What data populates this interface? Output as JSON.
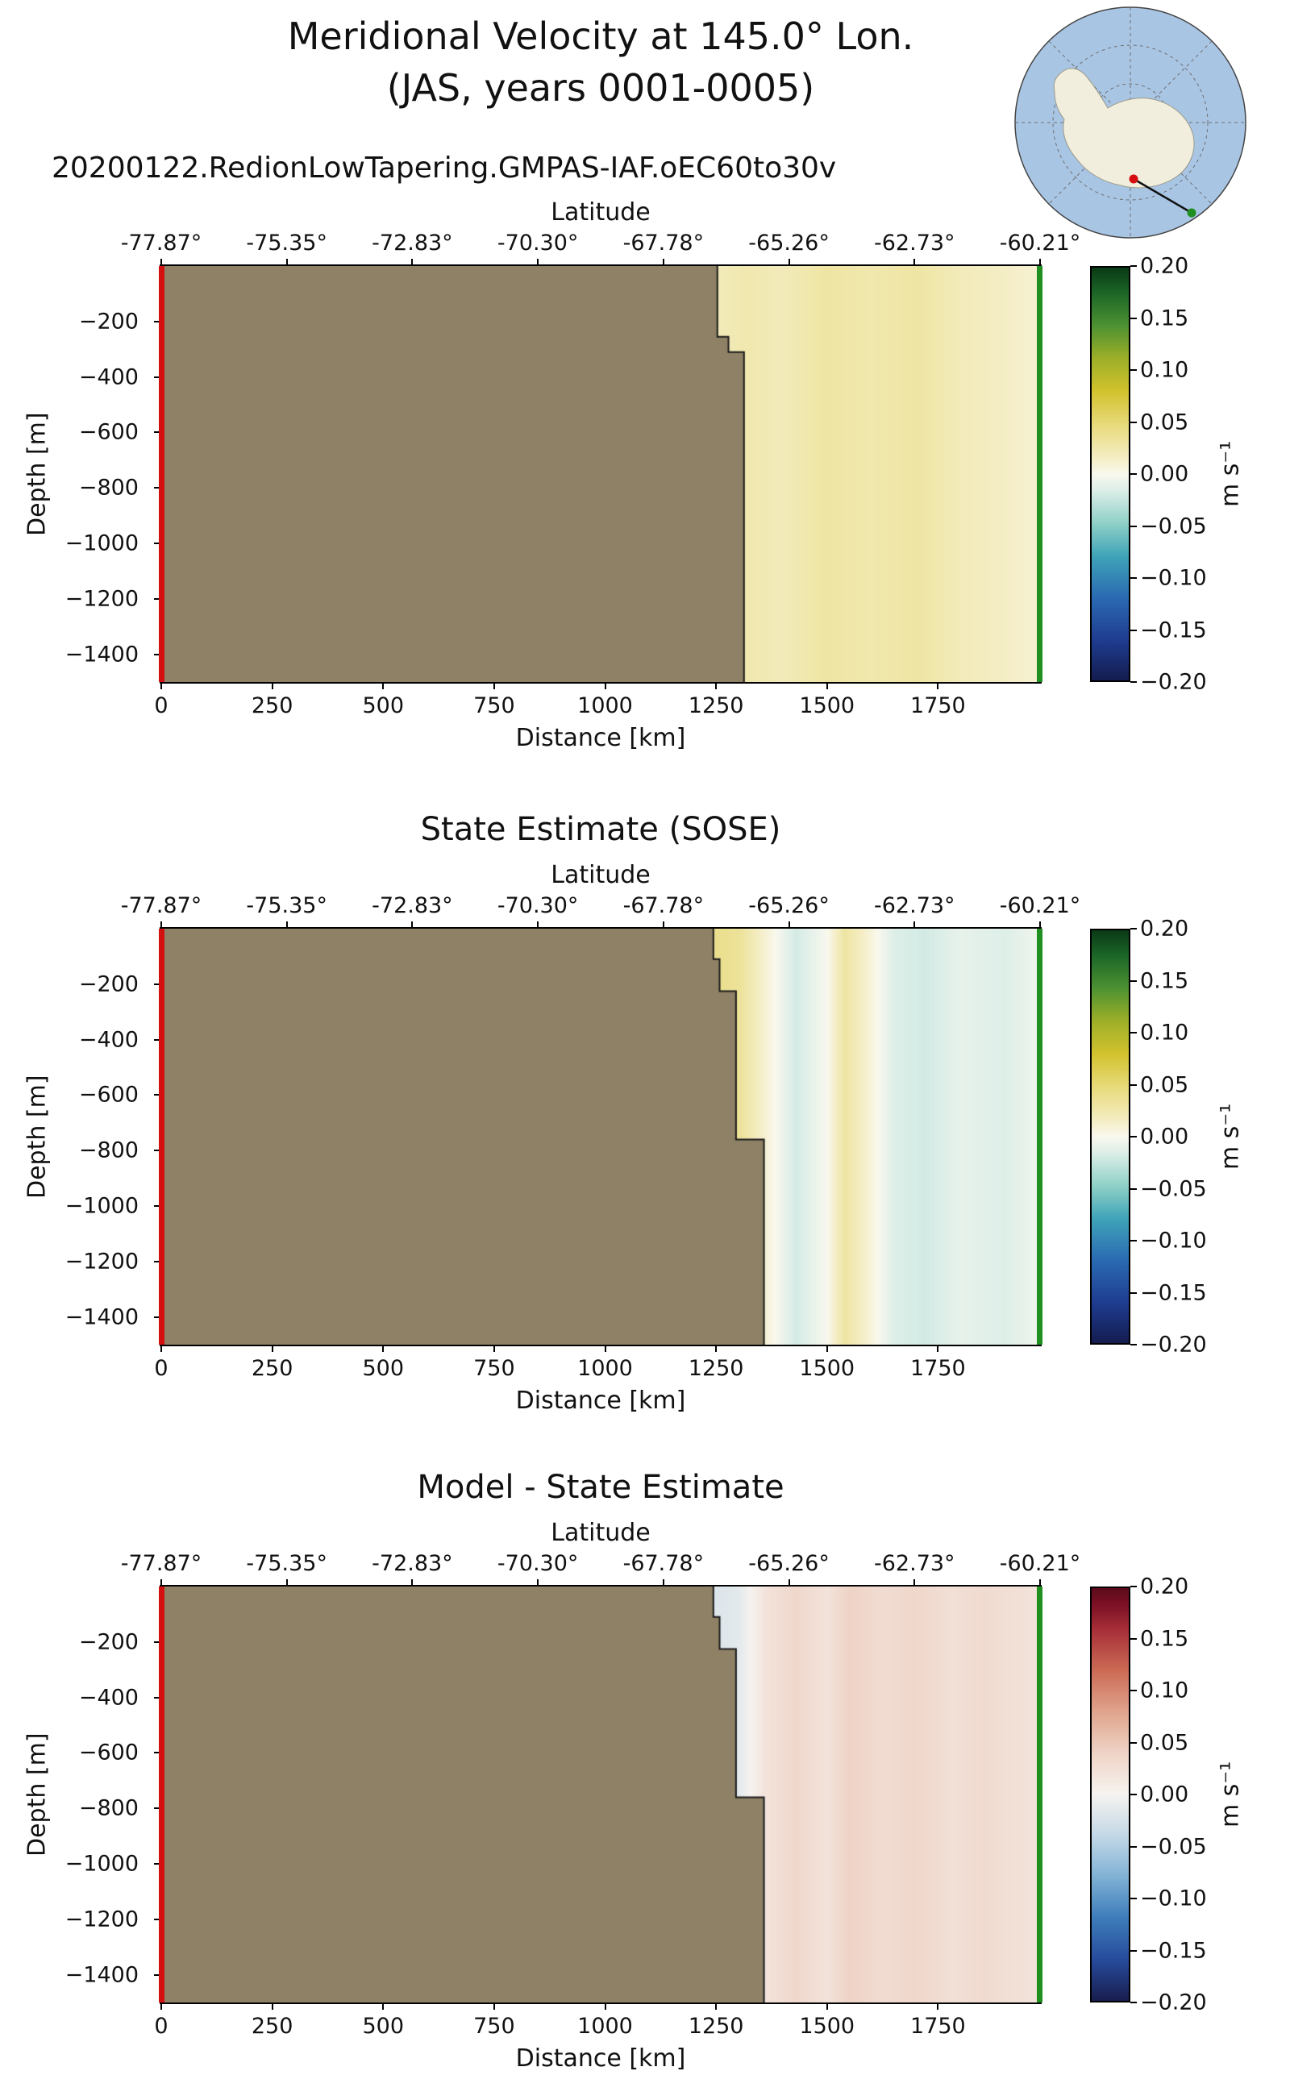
{
  "header": {
    "title_line1": "Meridional Velocity at 145.0° Lon.",
    "title_line2": "(JAS, years 0001-0005)",
    "run_name": "20200122.RedionLowTapering.GMPAS-IAF.oEC60to30v"
  },
  "colors": {
    "land": "#8e8165",
    "transect_start": "#d40f0f",
    "transect_end": "#1f8f1f",
    "map_ocean": "#a9c5e4",
    "map_land": "#f2eedd",
    "map_grid": "#6f6f6f",
    "boundary_line": "#1b1b1b"
  },
  "colormaps": {
    "delta": [
      [
        0.0,
        "#141c4f"
      ],
      [
        0.1,
        "#1f3d92"
      ],
      [
        0.2,
        "#2a6ab2"
      ],
      [
        0.3,
        "#3fa3b8"
      ],
      [
        0.38,
        "#8ed0c6"
      ],
      [
        0.46,
        "#dceee8"
      ],
      [
        0.5,
        "#f9f8ee"
      ],
      [
        0.54,
        "#f4edc3"
      ],
      [
        0.62,
        "#e7da7a"
      ],
      [
        0.7,
        "#d2c22e"
      ],
      [
        0.78,
        "#9daf28"
      ],
      [
        0.86,
        "#4c9132"
      ],
      [
        0.94,
        "#1b6527"
      ],
      [
        1.0,
        "#0a3a16"
      ]
    ],
    "balance": [
      [
        0.0,
        "#181d4e"
      ],
      [
        0.1,
        "#274b9c"
      ],
      [
        0.2,
        "#3d7cba"
      ],
      [
        0.3,
        "#7fb1d4"
      ],
      [
        0.4,
        "#c3d8e6"
      ],
      [
        0.5,
        "#f6f3f0"
      ],
      [
        0.6,
        "#efd3c6"
      ],
      [
        0.7,
        "#e0a48d"
      ],
      [
        0.8,
        "#cc6b55"
      ],
      [
        0.9,
        "#a62e38"
      ],
      [
        0.96,
        "#7c1024"
      ],
      [
        1.0,
        "#5c0a1c"
      ]
    ]
  },
  "chart_data": [
    {
      "type": "heatmap",
      "title": "",
      "top_axis": {
        "label": "Latitude",
        "ticks": [
          "-77.87°",
          "-75.35°",
          "-72.83°",
          "-70.30°",
          "-67.78°",
          "-65.26°",
          "-62.73°",
          "-60.21°"
        ]
      },
      "x_axis": {
        "label": "Distance [km]",
        "ticks": [
          "0",
          "250",
          "500",
          "750",
          "1000",
          "1250",
          "1500",
          "1750"
        ],
        "tick_values": [
          0,
          250,
          500,
          750,
          1000,
          1250,
          1500,
          1750
        ],
        "range_km": [
          0,
          1980
        ]
      },
      "y_axis": {
        "label": "Depth [m]",
        "ticks": [
          "−200",
          "−400",
          "−600",
          "−800",
          "−1000",
          "−1200",
          "−1400"
        ],
        "tick_values": [
          -200,
          -400,
          -600,
          -800,
          -1000,
          -1200,
          -1400
        ],
        "range_m": [
          0,
          -1500
        ]
      },
      "colorbar": {
        "label": "m s⁻¹",
        "ticks": [
          "0.20",
          "0.15",
          "0.10",
          "0.05",
          "0.00",
          "−0.05",
          "−0.10",
          "−0.15",
          "−0.20"
        ],
        "tick_values": [
          0.2,
          0.15,
          0.1,
          0.05,
          0.0,
          -0.05,
          -0.1,
          -0.15,
          -0.2
        ],
        "vmin": -0.2,
        "vmax": 0.2,
        "colormap": "delta"
      },
      "land_boundary_km_m": [
        [
          1253,
          0
        ],
        [
          1253,
          -255
        ],
        [
          1278,
          -255
        ],
        [
          1278,
          -310
        ],
        [
          1313,
          -310
        ],
        [
          1313,
          -1500
        ]
      ],
      "velocity_samples_km_value": [
        [
          1253,
          0.02
        ],
        [
          1320,
          0.025
        ],
        [
          1400,
          0.02
        ],
        [
          1500,
          0.03
        ],
        [
          1600,
          0.025
        ],
        [
          1700,
          0.03
        ],
        [
          1800,
          0.02
        ],
        [
          1900,
          0.015
        ],
        [
          1980,
          0.01
        ]
      ]
    },
    {
      "type": "heatmap",
      "title": "State Estimate (SOSE)",
      "top_axis": {
        "label": "Latitude",
        "ticks": [
          "-77.87°",
          "-75.35°",
          "-72.83°",
          "-70.30°",
          "-67.78°",
          "-65.26°",
          "-62.73°",
          "-60.21°"
        ]
      },
      "x_axis": {
        "label": "Distance [km]",
        "ticks": [
          "0",
          "250",
          "500",
          "750",
          "1000",
          "1250",
          "1500",
          "1750"
        ],
        "tick_values": [
          0,
          250,
          500,
          750,
          1000,
          1250,
          1500,
          1750
        ],
        "range_km": [
          0,
          1980
        ]
      },
      "y_axis": {
        "label": "Depth [m]",
        "ticks": [
          "−200",
          "−400",
          "−600",
          "−800",
          "−1000",
          "−1200",
          "−1400"
        ],
        "tick_values": [
          -200,
          -400,
          -600,
          -800,
          -1000,
          -1200,
          -1400
        ],
        "range_m": [
          0,
          -1500
        ]
      },
      "colorbar": {
        "label": "m s⁻¹",
        "ticks": [
          "0.20",
          "0.15",
          "0.10",
          "0.05",
          "0.00",
          "−0.05",
          "−0.10",
          "−0.15",
          "−0.20"
        ],
        "tick_values": [
          0.2,
          0.15,
          0.1,
          0.05,
          0.0,
          -0.05,
          -0.1,
          -0.15,
          -0.2
        ],
        "vmin": -0.2,
        "vmax": 0.2,
        "colormap": "delta"
      },
      "land_boundary_km_m": [
        [
          1244,
          0
        ],
        [
          1244,
          -110
        ],
        [
          1258,
          -110
        ],
        [
          1258,
          -225
        ],
        [
          1295,
          -225
        ],
        [
          1295,
          -760
        ],
        [
          1358,
          -760
        ],
        [
          1358,
          -1500
        ]
      ],
      "velocity_samples_km_value": [
        [
          1244,
          0.04
        ],
        [
          1300,
          0.035
        ],
        [
          1360,
          0.01
        ],
        [
          1430,
          -0.02
        ],
        [
          1500,
          0.0
        ],
        [
          1540,
          0.03
        ],
        [
          1590,
          0.01
        ],
        [
          1650,
          -0.015
        ],
        [
          1720,
          -0.02
        ],
        [
          1800,
          -0.01
        ],
        [
          1900,
          -0.015
        ],
        [
          1980,
          -0.005
        ]
      ]
    },
    {
      "type": "heatmap",
      "title": "Model - State Estimate",
      "top_axis": {
        "label": "Latitude",
        "ticks": [
          "-77.87°",
          "-75.35°",
          "-72.83°",
          "-70.30°",
          "-67.78°",
          "-65.26°",
          "-62.73°",
          "-60.21°"
        ]
      },
      "x_axis": {
        "label": "Distance [km]",
        "ticks": [
          "0",
          "250",
          "500",
          "750",
          "1000",
          "1250",
          "1500",
          "1750"
        ],
        "tick_values": [
          0,
          250,
          500,
          750,
          1000,
          1250,
          1500,
          1750
        ],
        "range_km": [
          0,
          1980
        ]
      },
      "y_axis": {
        "label": "Depth [m]",
        "ticks": [
          "−200",
          "−400",
          "−600",
          "−800",
          "−1000",
          "−1200",
          "−1400"
        ],
        "tick_values": [
          -200,
          -400,
          -600,
          -800,
          -1000,
          -1200,
          -1400
        ],
        "range_m": [
          0,
          -1500
        ]
      },
      "colorbar": {
        "label": "m s⁻¹",
        "ticks": [
          "0.20",
          "0.15",
          "0.10",
          "0.05",
          "0.00",
          "−0.05",
          "−0.10",
          "−0.15",
          "−0.20"
        ],
        "tick_values": [
          0.2,
          0.15,
          0.1,
          0.05,
          0.0,
          -0.05,
          -0.1,
          -0.15,
          -0.2
        ],
        "vmin": -0.2,
        "vmax": 0.2,
        "colormap": "balance"
      },
      "land_boundary_km_m": [
        [
          1244,
          0
        ],
        [
          1244,
          -110
        ],
        [
          1258,
          -110
        ],
        [
          1258,
          -225
        ],
        [
          1295,
          -225
        ],
        [
          1295,
          -760
        ],
        [
          1358,
          -760
        ],
        [
          1358,
          -1500
        ]
      ],
      "velocity_samples_km_value": [
        [
          1244,
          -0.02
        ],
        [
          1300,
          -0.015
        ],
        [
          1360,
          0.02
        ],
        [
          1430,
          0.035
        ],
        [
          1500,
          0.02
        ],
        [
          1550,
          0.04
        ],
        [
          1620,
          0.03
        ],
        [
          1700,
          0.035
        ],
        [
          1780,
          0.025
        ],
        [
          1850,
          0.03
        ],
        [
          1920,
          0.025
        ],
        [
          1980,
          0.02
        ]
      ]
    }
  ]
}
